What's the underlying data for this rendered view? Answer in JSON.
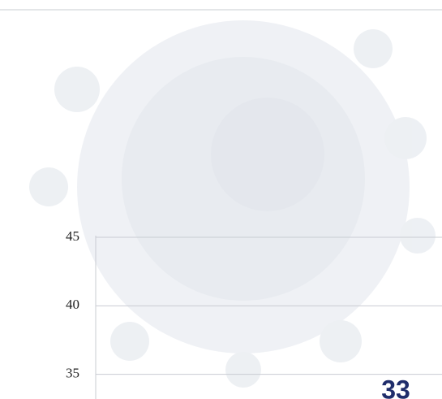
{
  "chart_data": {
    "type": "bar",
    "categories": [
      null
    ],
    "values": [
      33
    ],
    "color": "#1f2d6b",
    "ylim": [
      33.2,
      45
    ],
    "yticks": [
      35,
      40,
      45
    ],
    "grid": true
  }
}
